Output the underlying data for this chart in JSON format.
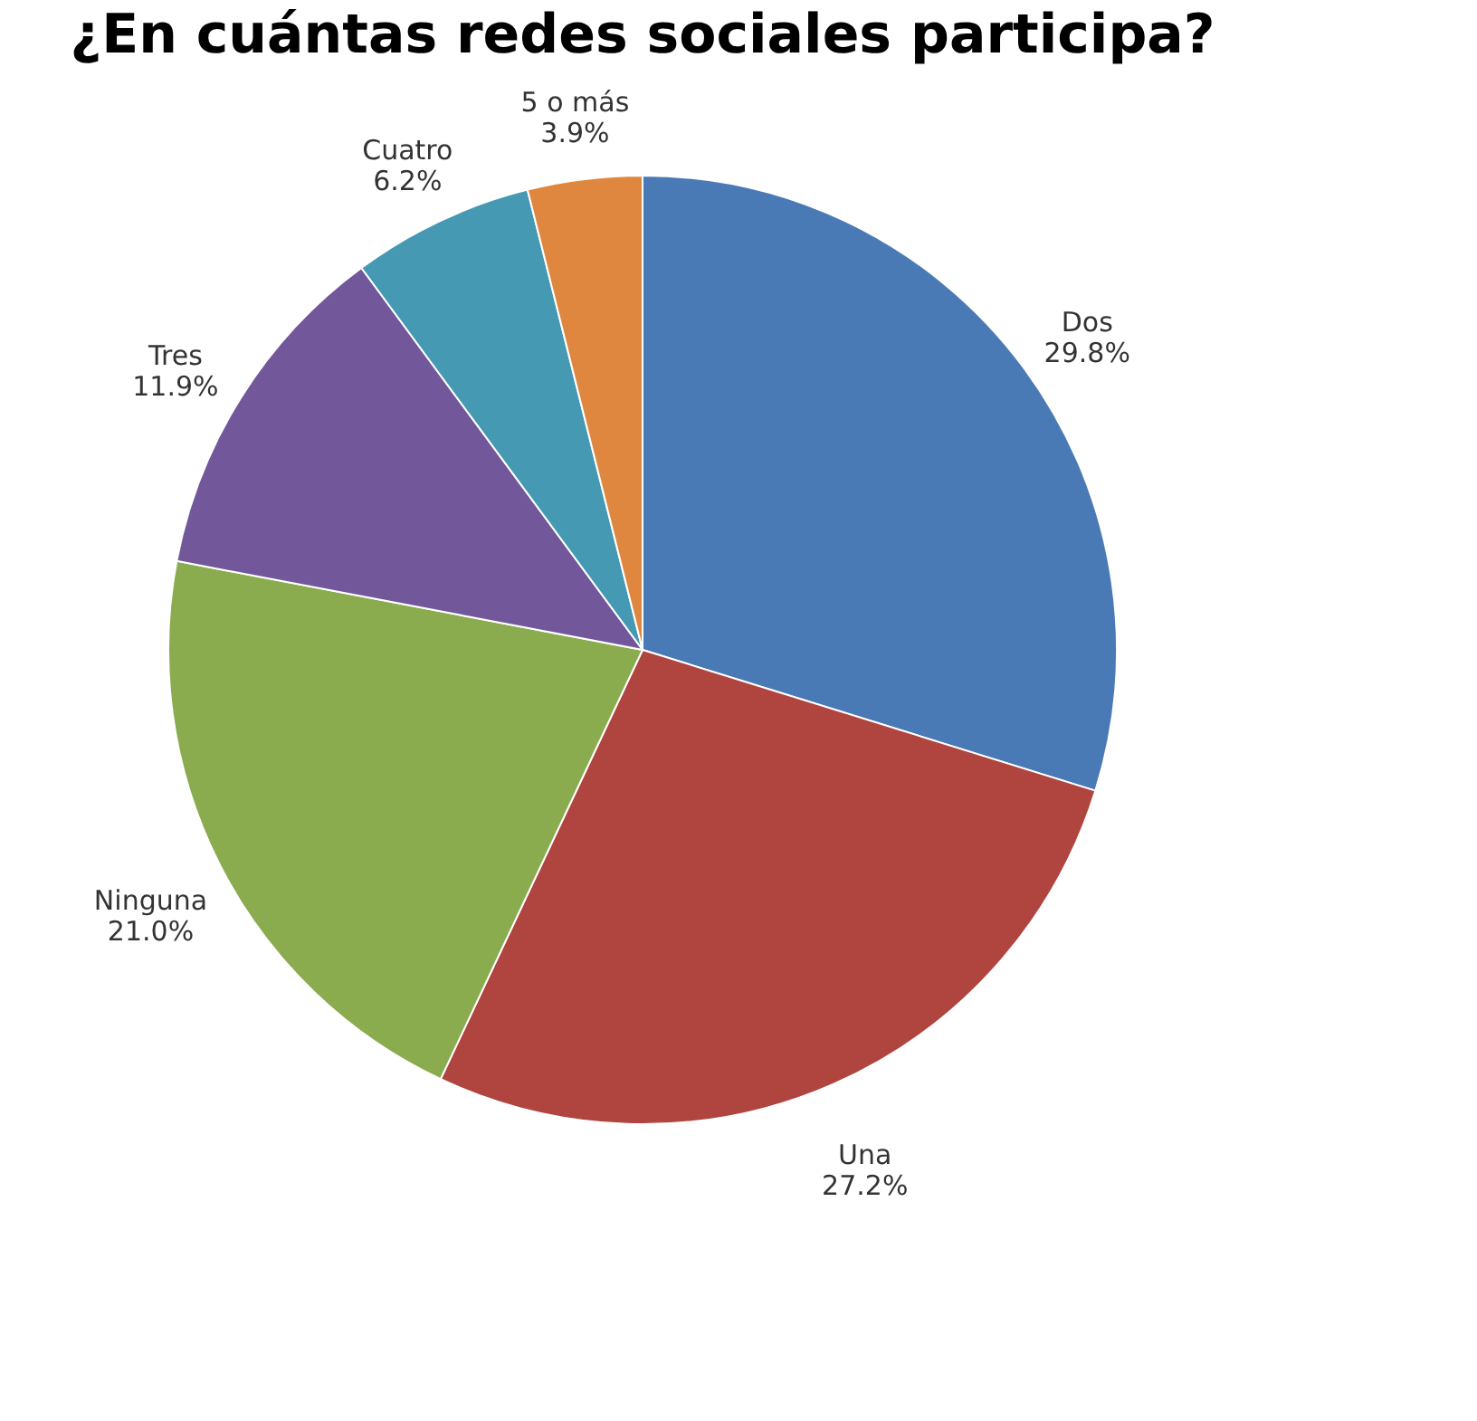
{
  "chart_data": {
    "type": "pie",
    "title": "¿En cuántas redes sociales participa?",
    "categories": [
      "Dos",
      "Una",
      "Ninguna",
      "Tres",
      "Cuatro",
      "5 o más"
    ],
    "values": [
      29.8,
      27.2,
      21.0,
      11.9,
      6.2,
      3.9
    ],
    "value_labels": [
      "29.8%",
      "27.2%",
      "21.0%",
      "11.9%",
      "6.2%",
      "3.9%"
    ],
    "colors": [
      "#4a7ab5",
      "#b0443f",
      "#8aac4f",
      "#72589a",
      "#4599b3",
      "#e0873f"
    ],
    "legend": false
  }
}
